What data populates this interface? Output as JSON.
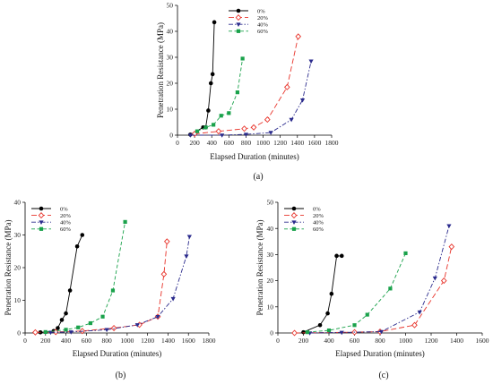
{
  "chart_data": [
    {
      "type": "line",
      "caption": "(a)",
      "xlabel": "Elapsed Duration (minutes)",
      "ylabel": "Penetration Resistance (MPa)",
      "xlim": [
        0,
        1800
      ],
      "ylim": [
        0,
        50
      ],
      "xticks": [
        0,
        200,
        400,
        600,
        800,
        1000,
        1200,
        1400,
        1600,
        1800
      ],
      "yticks": [
        0,
        10,
        20,
        30,
        40,
        50
      ],
      "legend_position": "top-center",
      "series": [
        {
          "name": "0%",
          "color": "#000000",
          "marker": "circle-filled",
          "dash": "solid",
          "x": [
            150,
            300,
            330,
            360,
            390,
            410,
            430
          ],
          "y": [
            0.2,
            3,
            3,
            9.5,
            20,
            23.5,
            43.5
          ]
        },
        {
          "name": "20%",
          "color": "#e8332a",
          "marker": "diamond-open",
          "dash": "long-dash",
          "x": [
            200,
            480,
            780,
            890,
            1050,
            1280,
            1410
          ],
          "y": [
            0.5,
            1.5,
            2.5,
            3,
            6,
            18.5,
            38
          ]
        },
        {
          "name": "40%",
          "color": "#2a2a8c",
          "marker": "triangle-down-filled",
          "dash": "dash-dot",
          "x": [
            150,
            520,
            800,
            1090,
            1330,
            1460,
            1560
          ],
          "y": [
            0,
            0,
            0.3,
            1,
            6,
            13.5,
            28.5
          ]
        },
        {
          "name": "60%",
          "color": "#1aa24b",
          "marker": "square-filled",
          "dash": "dash",
          "x": [
            230,
            330,
            420,
            510,
            600,
            700,
            760
          ],
          "y": [
            1.5,
            3,
            4,
            7.5,
            8.5,
            16.5,
            29.5
          ]
        }
      ]
    },
    {
      "type": "line",
      "caption": "(b)",
      "xlabel": "Elapsed Duration (minutes)",
      "ylabel": "Penetration Resistance (MPa)",
      "xlim": [
        0,
        1800
      ],
      "ylim": [
        0,
        40
      ],
      "xticks": [
        0,
        200,
        400,
        600,
        800,
        1000,
        1200,
        1400,
        1600,
        1800
      ],
      "yticks": [
        0,
        10,
        20,
        30,
        40
      ],
      "legend_position": "top-left",
      "series": [
        {
          "name": "0%",
          "color": "#000000",
          "marker": "circle-filled",
          "dash": "solid",
          "x": [
            150,
            280,
            320,
            360,
            400,
            440,
            510,
            560
          ],
          "y": [
            0.2,
            0.6,
            1.5,
            4,
            6,
            13,
            26.5,
            30
          ]
        },
        {
          "name": "20%",
          "color": "#e8332a",
          "marker": "diamond-open",
          "dash": "long-dash",
          "x": [
            100,
            300,
            560,
            870,
            1120,
            1300,
            1360,
            1390
          ],
          "y": [
            0.2,
            0.3,
            0.6,
            1.5,
            2.5,
            5,
            18,
            28
          ]
        },
        {
          "name": "40%",
          "color": "#2a2a8c",
          "marker": "triangle-down-filled",
          "dash": "dash-dot",
          "x": [
            250,
            450,
            800,
            1100,
            1300,
            1450,
            1580,
            1610
          ],
          "y": [
            0.2,
            0.3,
            1,
            2.5,
            5,
            10.5,
            23.5,
            29.5
          ]
        },
        {
          "name": "60%",
          "color": "#1aa24b",
          "marker": "square-filled",
          "dash": "dash",
          "x": [
            200,
            400,
            520,
            640,
            760,
            860,
            980
          ],
          "y": [
            0.3,
            1,
            1.7,
            3,
            5,
            13,
            34
          ]
        }
      ]
    },
    {
      "type": "line",
      "caption": "(c)",
      "xlabel": "Elapsed Duration (minutes)",
      "ylabel": "Penetration Resistance (MPa)",
      "xlim": [
        0,
        1600
      ],
      "ylim": [
        0,
        50
      ],
      "xticks": [
        0,
        200,
        400,
        600,
        800,
        1000,
        1200,
        1400,
        1600
      ],
      "yticks": [
        0,
        10,
        20,
        30,
        40,
        50
      ],
      "legend_position": "top-left",
      "series": [
        {
          "name": "0%",
          "color": "#000000",
          "marker": "circle-filled",
          "dash": "solid",
          "x": [
            200,
            330,
            390,
            420,
            460,
            500
          ],
          "y": [
            0.3,
            3,
            7.5,
            15,
            29.5,
            29.5
          ]
        },
        {
          "name": "20%",
          "color": "#e8332a",
          "marker": "diamond-open",
          "dash": "long-dash",
          "x": [
            130,
            600,
            800,
            1070,
            1300,
            1360
          ],
          "y": [
            0,
            0.3,
            0.5,
            3,
            20,
            33
          ]
        },
        {
          "name": "40%",
          "color": "#2a2a8c",
          "marker": "triangle-down-filled",
          "dash": "dash-dot",
          "x": [
            250,
            500,
            810,
            1110,
            1230,
            1340
          ],
          "y": [
            0,
            0.2,
            0.5,
            8,
            21,
            41
          ]
        },
        {
          "name": "60%",
          "color": "#1aa24b",
          "marker": "square-filled",
          "dash": "dash",
          "x": [
            230,
            400,
            600,
            700,
            880,
            1000
          ],
          "y": [
            0.3,
            1,
            3,
            7,
            17,
            30.5
          ]
        }
      ]
    }
  ]
}
